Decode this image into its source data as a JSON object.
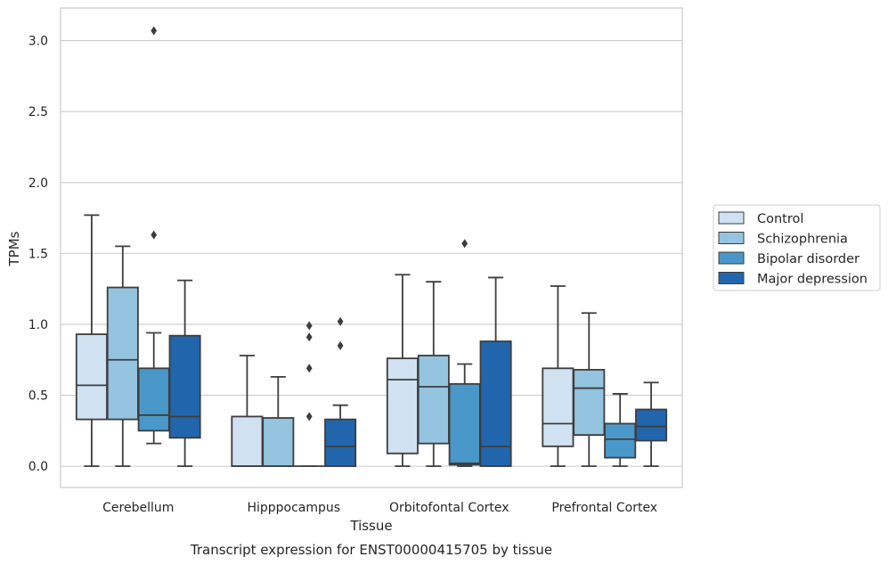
{
  "chart_data": {
    "type": "box",
    "title": "Transcript expression for ENST00000415705 by tissue",
    "xlabel": "Tissue",
    "ylabel": "TPMs",
    "ylim": [
      -0.15,
      3.23
    ],
    "yticks": [
      0.0,
      0.5,
      1.0,
      1.5,
      2.0,
      2.5,
      3.0
    ],
    "ytick_labels": [
      "0.0",
      "0.5",
      "1.0",
      "1.5",
      "2.0",
      "2.5",
      "3.0"
    ],
    "grid": "horizontal",
    "legend_position": "outside-right",
    "categories": [
      "Cerebellum",
      "Hipppocampus",
      "Orbitofontal Cortex",
      "Prefrontal Cortex"
    ],
    "series": [
      {
        "name": "Control",
        "color": "#d0e1f2",
        "boxes": [
          {
            "whislo": 0.0,
            "q1": 0.33,
            "med": 0.57,
            "q3": 0.93,
            "whishi": 1.77,
            "fliers": []
          },
          {
            "whislo": 0.0,
            "q1": 0.0,
            "med": 0.0,
            "q3": 0.35,
            "whishi": 0.78,
            "fliers": []
          },
          {
            "whislo": 0.0,
            "q1": 0.09,
            "med": 0.61,
            "q3": 0.76,
            "whishi": 1.35,
            "fliers": []
          },
          {
            "whislo": 0.0,
            "q1": 0.14,
            "med": 0.3,
            "q3": 0.69,
            "whishi": 1.27,
            "fliers": []
          }
        ]
      },
      {
        "name": "Schizophrenia",
        "color": "#94c4df",
        "boxes": [
          {
            "whislo": 0.0,
            "q1": 0.33,
            "med": 0.75,
            "q3": 1.26,
            "whishi": 1.55,
            "fliers": []
          },
          {
            "whislo": 0.0,
            "q1": 0.0,
            "med": 0.0,
            "q3": 0.34,
            "whishi": 0.63,
            "fliers": []
          },
          {
            "whislo": 0.0,
            "q1": 0.16,
            "med": 0.56,
            "q3": 0.78,
            "whishi": 1.3,
            "fliers": []
          },
          {
            "whislo": 0.0,
            "q1": 0.22,
            "med": 0.55,
            "q3": 0.68,
            "whishi": 1.08,
            "fliers": []
          }
        ]
      },
      {
        "name": "Bipolar disorder",
        "color": "#4a98c9",
        "boxes": [
          {
            "whislo": 0.16,
            "q1": 0.25,
            "med": 0.36,
            "q3": 0.69,
            "whishi": 0.94,
            "fliers": [
              1.63,
              3.07
            ]
          },
          {
            "whislo": 0.0,
            "q1": 0.0,
            "med": 0.0,
            "q3": 0.0,
            "whishi": 0.0,
            "fliers": [
              0.35,
              0.69,
              0.91,
              0.99
            ]
          },
          {
            "whislo": 0.0,
            "q1": 0.01,
            "med": 0.02,
            "q3": 0.58,
            "whishi": 0.72,
            "fliers": [
              1.57
            ]
          },
          {
            "whislo": 0.0,
            "q1": 0.06,
            "med": 0.19,
            "q3": 0.3,
            "whishi": 0.51,
            "fliers": []
          }
        ]
      },
      {
        "name": "Major depression",
        "color": "#2166ac",
        "boxes": [
          {
            "whislo": 0.0,
            "q1": 0.2,
            "med": 0.35,
            "q3": 0.92,
            "whishi": 1.31,
            "fliers": []
          },
          {
            "whislo": 0.0,
            "q1": 0.0,
            "med": 0.14,
            "q3": 0.33,
            "whishi": 0.43,
            "fliers": [
              0.85,
              1.02
            ]
          },
          {
            "whislo": 0.0,
            "q1": 0.0,
            "med": 0.14,
            "q3": 0.88,
            "whishi": 1.33,
            "fliers": []
          },
          {
            "whislo": 0.0,
            "q1": 0.18,
            "med": 0.28,
            "q3": 0.4,
            "whishi": 0.59,
            "fliers": []
          }
        ]
      }
    ]
  }
}
